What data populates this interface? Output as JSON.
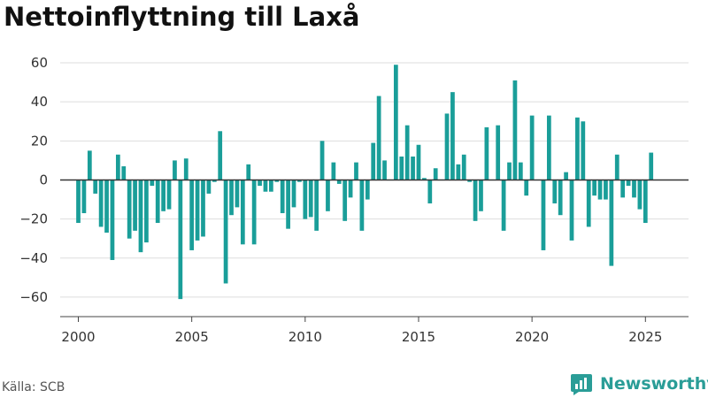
{
  "title": "Nettoinflyttning till Laxå",
  "source": "Källa: SCB",
  "brand": {
    "name": "Newsworthy",
    "icon": "newsworthy-logo-icon",
    "color": "#2a9d97"
  },
  "chart_data": {
    "type": "bar",
    "title": "Nettoinflyttning till Laxå",
    "xlabel": "",
    "ylabel": "",
    "bar_color": "#1a9e99",
    "grid": true,
    "ylim": [
      -70,
      65
    ],
    "xlim": [
      1999.2,
      2026.9
    ],
    "yticks": [
      -60,
      -40,
      -20,
      0,
      20,
      40,
      60
    ],
    "ytick_labels": [
      "−60",
      "−40",
      "−20",
      "0",
      "20",
      "40",
      "60"
    ],
    "xticks": [
      2000,
      2005,
      2010,
      2015,
      2020,
      2025
    ],
    "xtick_labels": [
      "2000",
      "2005",
      "2010",
      "2015",
      "2020",
      "2025"
    ],
    "start_year": 2000,
    "values": [
      -22,
      -17,
      15,
      -7,
      -24,
      -27,
      -41,
      13,
      7,
      -30,
      -26,
      -37,
      -32,
      -3,
      -22,
      -16,
      -15,
      10,
      -61,
      11,
      -36,
      -31,
      -29,
      -7,
      -1,
      25,
      -53,
      -18,
      -14,
      -33,
      8,
      -33,
      -3,
      -6,
      -6,
      -1,
      -17,
      -25,
      -14,
      -1,
      -20,
      -19,
      -26,
      20,
      -16,
      9,
      -2,
      -21,
      -9,
      9,
      -26,
      -10,
      19,
      43,
      10,
      0,
      59,
      12,
      28,
      12,
      18,
      1,
      -12,
      6,
      0,
      34,
      45,
      8,
      13,
      -1,
      -21,
      -16,
      27,
      0,
      28,
      -26,
      9,
      51,
      9,
      -8,
      33,
      0,
      -36,
      33,
      -12,
      -18,
      4,
      -31,
      32,
      30,
      -24,
      -8,
      -10,
      -10,
      -44,
      13,
      -9,
      -3,
      -9,
      -15,
      -22,
      14
    ]
  }
}
